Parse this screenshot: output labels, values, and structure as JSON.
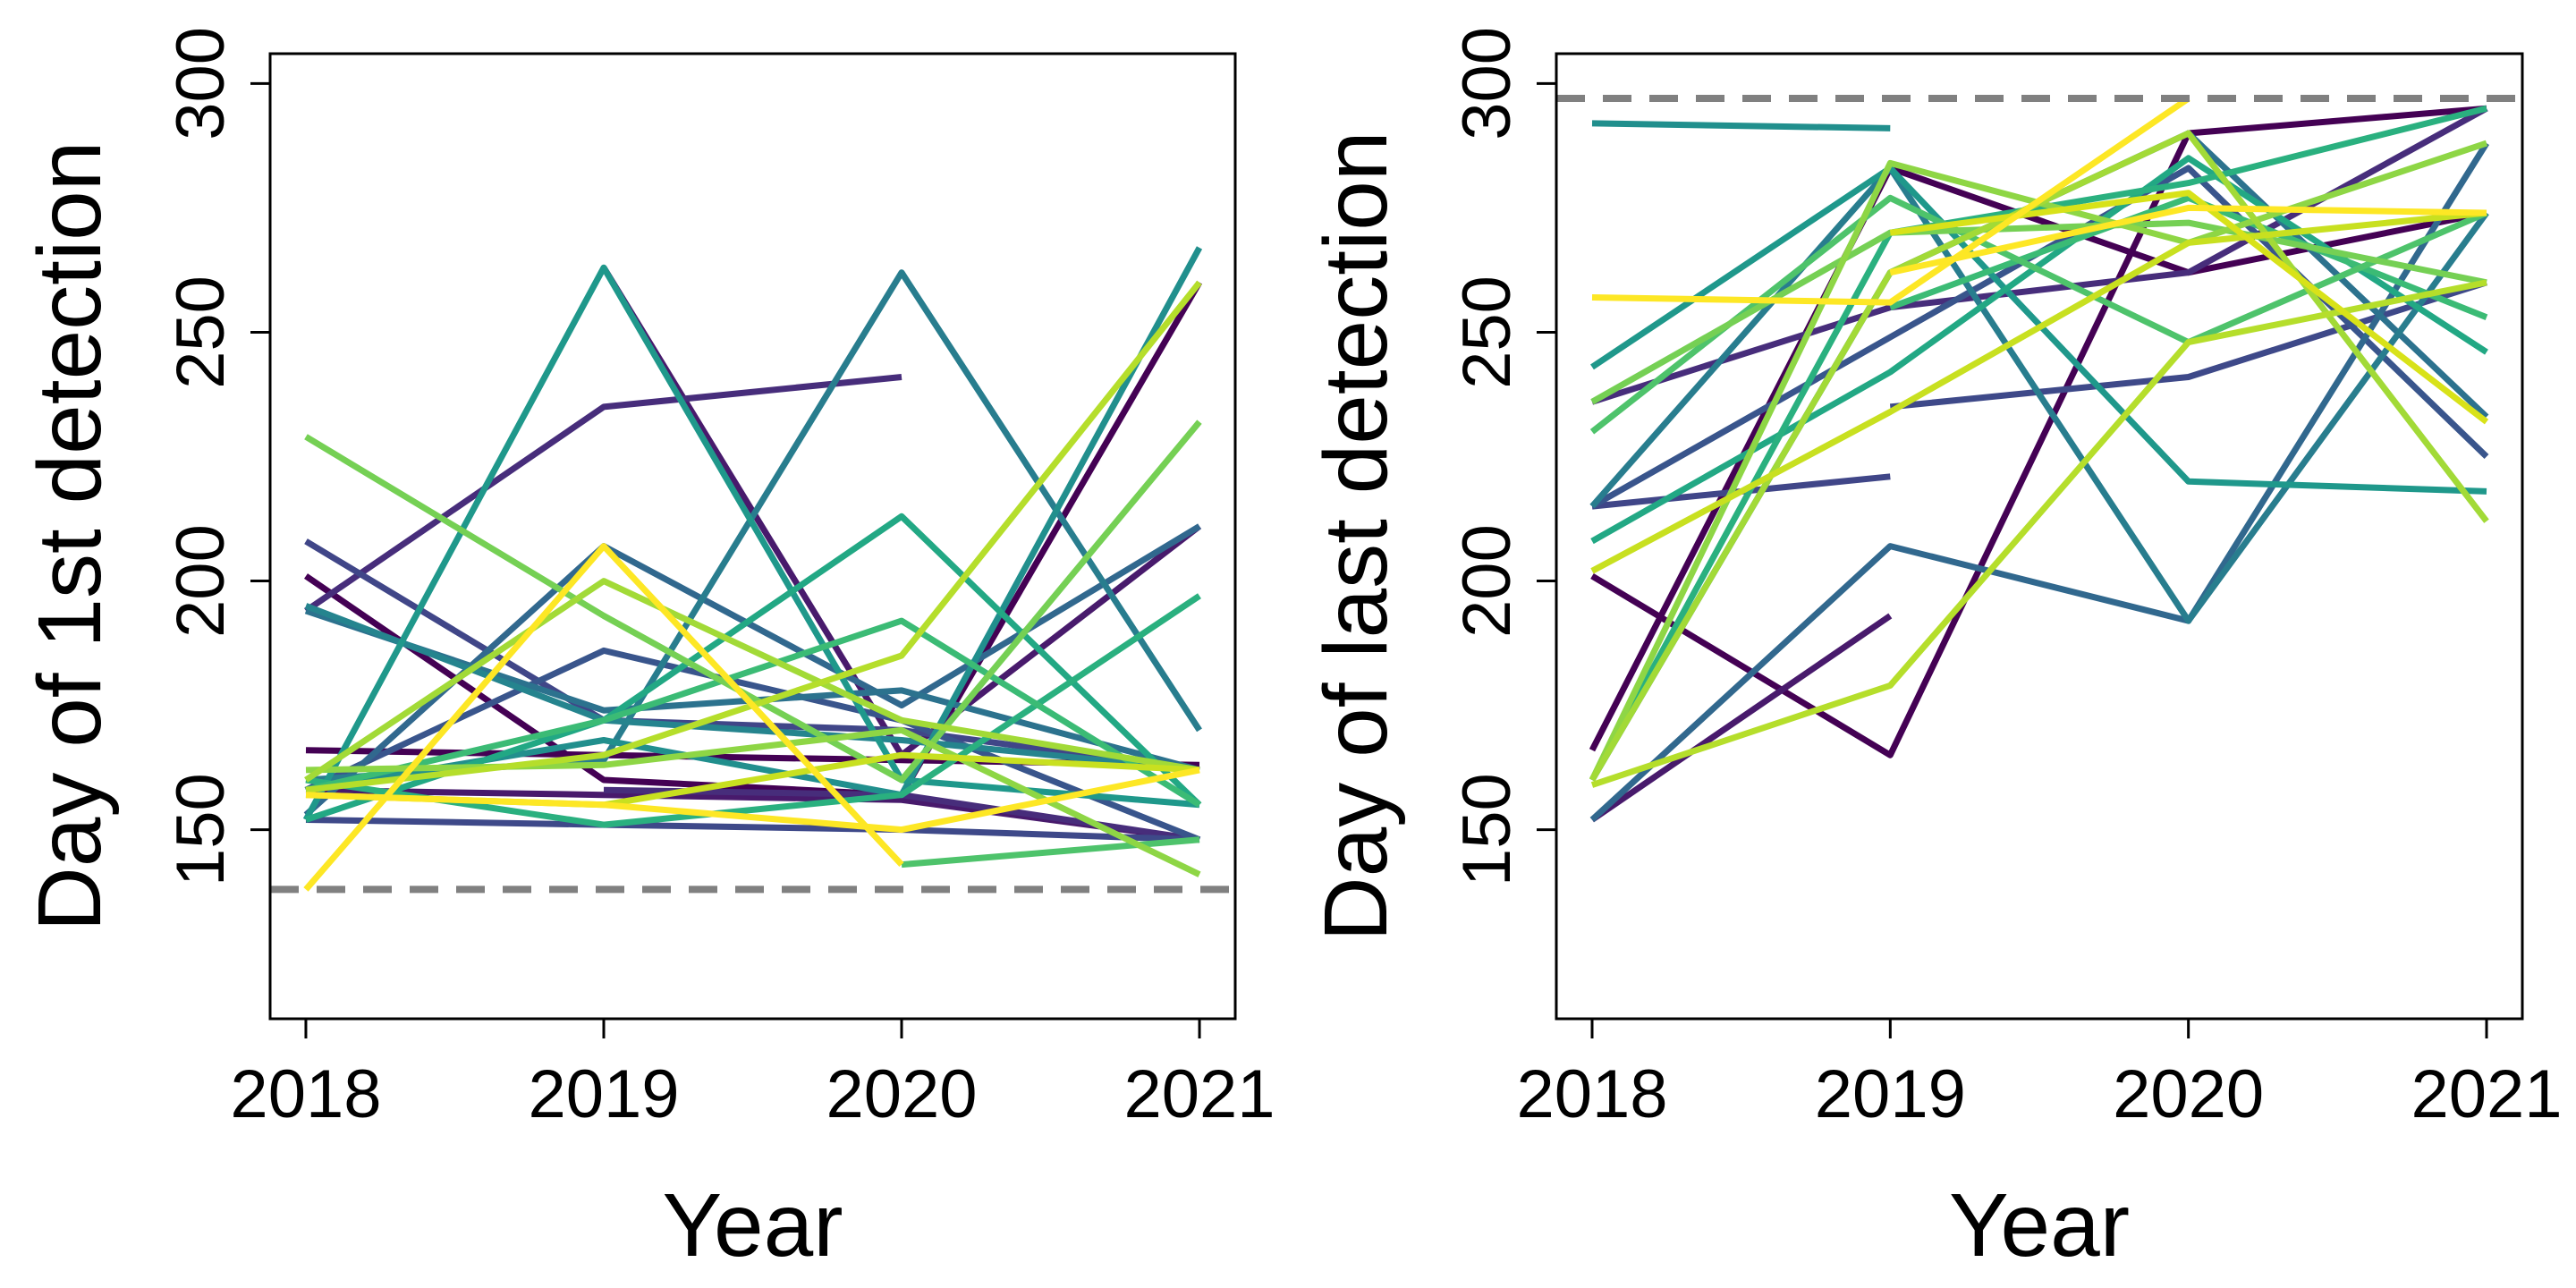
{
  "chart_data": [
    {
      "type": "line",
      "title": "",
      "xlabel": "Year",
      "ylabel": "Day of 1st detection",
      "x": [
        2018,
        2019,
        2020,
        2021
      ],
      "xlim": [
        2017.88,
        2021.12
      ],
      "ylim": [
        112,
        306
      ],
      "yticks": [
        150,
        200,
        250,
        300
      ],
      "legend": "none",
      "reference_line": {
        "y": 138,
        "style": "dashed",
        "color": "#808080"
      },
      "series": [
        {
          "color": "#440154",
          "values": [
            166,
            165,
            164,
            163
          ]
        },
        {
          "color": "#440154",
          "values": [
            201,
            160,
            157,
            260
          ]
        },
        {
          "color": "#481a6c",
          "values": [
            158,
            157,
            156,
            148
          ]
        },
        {
          "color": "#481a6c",
          "values": [
            null,
            263,
            165,
            211
          ]
        },
        {
          "color": "#472d7b",
          "values": [
            194,
            235,
            241,
            null
          ]
        },
        {
          "color": "#472d7b",
          "values": [
            null,
            158,
            157,
            148
          ]
        },
        {
          "color": "#404688",
          "values": [
            208,
            172,
            170,
            162
          ]
        },
        {
          "color": "#3e4989",
          "values": [
            152,
            151,
            150,
            148
          ]
        },
        {
          "color": "#39558c",
          "values": [
            158,
            186,
            172,
            148
          ]
        },
        {
          "color": "#31688e",
          "values": [
            153,
            207,
            175,
            211
          ]
        },
        {
          "color": "#2c728e",
          "values": [
            194,
            174,
            178,
            162
          ]
        },
        {
          "color": "#287d8e",
          "values": [
            160,
            164,
            262,
            170
          ]
        },
        {
          "color": "#25848e",
          "values": [
            195,
            172,
            168,
            162
          ]
        },
        {
          "color": "#218f8d",
          "values": [
            158,
            168,
            157,
            267
          ]
        },
        {
          "color": "#1f988b",
          "values": [
            152,
            263,
            160,
            155
          ]
        },
        {
          "color": "#22a884",
          "values": [
            152,
            172,
            213,
            155
          ]
        },
        {
          "color": "#2ab07f",
          "values": [
            160,
            151,
            157,
            197
          ]
        },
        {
          "color": "#3bbb75",
          "values": [
            158,
            172,
            192,
            155
          ]
        },
        {
          "color": "#4ec36b",
          "values": [
            null,
            null,
            143,
            148
          ]
        },
        {
          "color": "#75d054",
          "values": [
            229,
            193,
            160,
            232
          ]
        },
        {
          "color": "#8ed645",
          "values": [
            162,
            163,
            170,
            141
          ]
        },
        {
          "color": "#a2da37",
          "values": [
            160,
            200,
            172,
            162
          ]
        },
        {
          "color": "#b5de2b",
          "values": [
            158,
            165,
            185,
            260
          ]
        },
        {
          "color": "#c8e020",
          "values": [
            157,
            155,
            165,
            162
          ]
        },
        {
          "color": "#fde725",
          "values": [
            138,
            207,
            143,
            null
          ]
        },
        {
          "color": "#fde725",
          "values": [
            157,
            155,
            150,
            162
          ]
        }
      ]
    },
    {
      "type": "line",
      "title": "",
      "xlabel": "Year",
      "ylabel": "Day of last detection",
      "x": [
        2018,
        2019,
        2020,
        2021
      ],
      "xlim": [
        2017.88,
        2021.12
      ],
      "ylim": [
        112,
        306
      ],
      "yticks": [
        150,
        200,
        250,
        300
      ],
      "legend": "none",
      "reference_line": {
        "y": 297,
        "style": "dashed",
        "color": "#808080"
      },
      "series": [
        {
          "color": "#440154",
          "values": [
            201,
            165,
            290,
            295
          ]
        },
        {
          "color": "#440154",
          "values": [
            166,
            283,
            262,
            274
          ]
        },
        {
          "color": "#481a6c",
          "values": [
            152,
            193,
            null,
            null
          ]
        },
        {
          "color": "#472d7b",
          "values": [
            236,
            255,
            262,
            295
          ]
        },
        {
          "color": "#404688",
          "values": [
            215,
            221,
            null,
            null
          ]
        },
        {
          "color": "#3e4989",
          "values": [
            null,
            235,
            241,
            260
          ]
        },
        {
          "color": "#39558c",
          "values": [
            215,
            249,
            283,
            225
          ]
        },
        {
          "color": "#31688e",
          "values": [
            152,
            207,
            192,
            288
          ]
        },
        {
          "color": "#2c728e",
          "values": [
            160,
            262,
            290,
            233
          ]
        },
        {
          "color": "#287d8e",
          "values": [
            215,
            283,
            192,
            274
          ]
        },
        {
          "color": "#218f8d",
          "values": [
            292,
            291,
            null,
            null
          ]
        },
        {
          "color": "#1f988b",
          "values": [
            243,
            283,
            220,
            218
          ]
        },
        {
          "color": "#22a884",
          "values": [
            208,
            242,
            285,
            246
          ]
        },
        {
          "color": "#2ab07f",
          "values": [
            160,
            270,
            280,
            295
          ]
        },
        {
          "color": "#3bbb75",
          "values": [
            null,
            255,
            277,
            253
          ]
        },
        {
          "color": "#4ec36b",
          "values": [
            230,
            277,
            248,
            274
          ]
        },
        {
          "color": "#75d054",
          "values": [
            236,
            270,
            272,
            260
          ]
        },
        {
          "color": "#8ed645",
          "values": [
            160,
            284,
            268,
            288
          ]
        },
        {
          "color": "#a2da37",
          "values": [
            160,
            262,
            290,
            212
          ]
        },
        {
          "color": "#b5de2b",
          "values": [
            159,
            179,
            248,
            260
          ]
        },
        {
          "color": "#c8e020",
          "values": [
            202,
            234,
            268,
            274
          ]
        },
        {
          "color": "#d8e219",
          "values": [
            null,
            270,
            278,
            232
          ]
        },
        {
          "color": "#fde725",
          "values": [
            257,
            256,
            297,
            null
          ]
        },
        {
          "color": "#fde725",
          "values": [
            null,
            262,
            275,
            274
          ]
        }
      ]
    }
  ]
}
